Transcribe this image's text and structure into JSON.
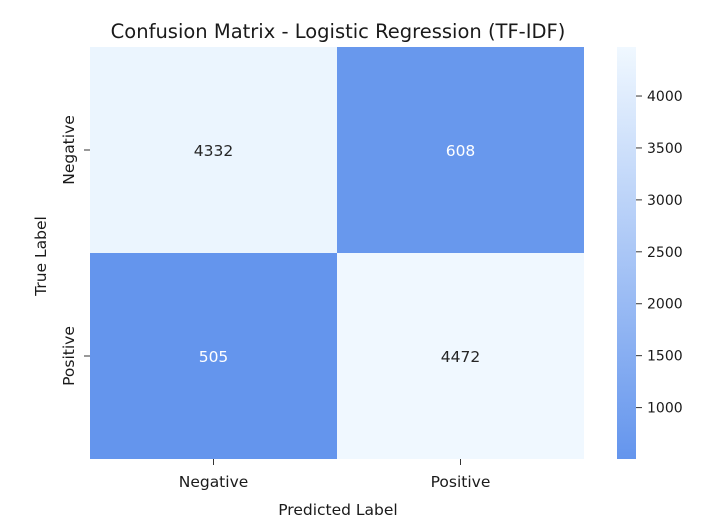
{
  "chart_data": {
    "type": "heatmap",
    "title": "Confusion Matrix - Logistic Regression (TF-IDF)",
    "xlabel": "Predicted Label",
    "ylabel": "True Label",
    "x_categories": [
      "Negative",
      "Positive"
    ],
    "y_categories": [
      "Negative",
      "Positive"
    ],
    "values": [
      [
        4332,
        608
      ],
      [
        505,
        4472
      ]
    ],
    "colorbar": {
      "min": 505,
      "max": 4472,
      "ticks": [
        1000,
        1500,
        2000,
        2500,
        3000,
        3500,
        4000
      ],
      "tick_labels": [
        "1000",
        "1500",
        "2000",
        "2500",
        "3000",
        "3500",
        "4000"
      ],
      "low_color": "#6495ED",
      "high_color": "#F0F8FF"
    },
    "grid": false
  }
}
